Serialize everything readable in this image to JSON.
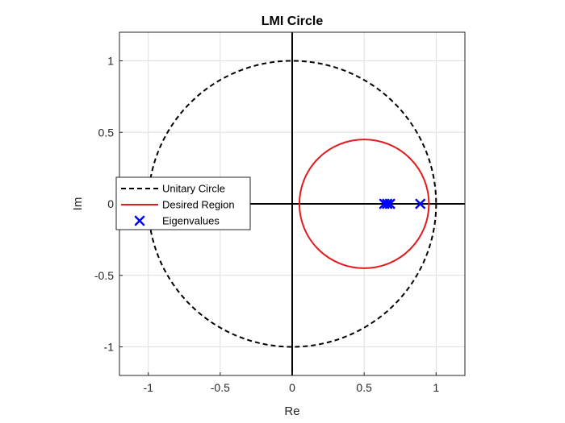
{
  "chart_data": {
    "type": "line",
    "title": "LMI Circle",
    "xlabel": "Re",
    "ylabel": "Im",
    "xlim": [
      -1.2,
      1.2
    ],
    "ylim": [
      -1.2,
      1.2
    ],
    "xticks": [
      -1,
      -0.5,
      0,
      0.5,
      1
    ],
    "yticks": [
      -1,
      -0.5,
      0,
      0.5,
      1
    ],
    "xtick_labels": [
      "-1",
      "-0.5",
      "0",
      "0.5",
      "1"
    ],
    "ytick_labels": [
      "-1",
      "-0.5",
      "0",
      "0.5",
      "1"
    ],
    "grid": true,
    "legend_position": "left",
    "series": [
      {
        "name": "Unitary Circle",
        "kind": "circle",
        "center": [
          0,
          0
        ],
        "radius": 1,
        "color": "#000000",
        "style": "dashed"
      },
      {
        "name": "Desired Region",
        "kind": "circle",
        "center": [
          0.5,
          0
        ],
        "radius": 0.45,
        "color": "#e41a1c",
        "style": "solid"
      },
      {
        "name": "Eigenvalues",
        "kind": "scatter",
        "marker": "x",
        "color": "#0000ff",
        "x": [
          0.64,
          0.66,
          0.68,
          0.89
        ],
        "y": [
          0,
          0,
          0,
          0
        ]
      }
    ]
  }
}
